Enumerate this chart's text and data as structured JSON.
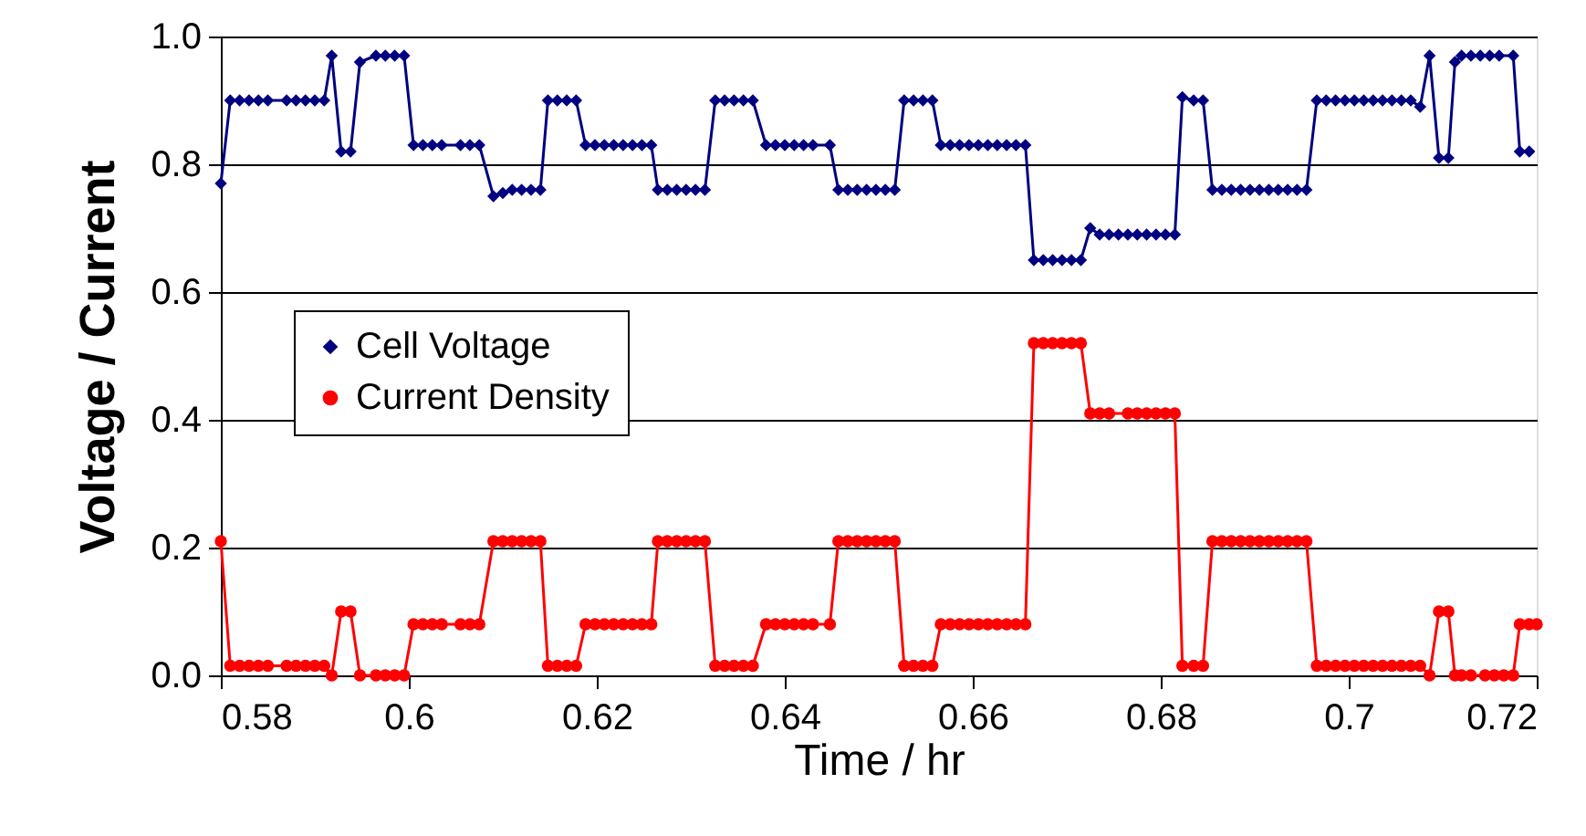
{
  "chart_data": {
    "type": "line",
    "xlabel": "Time / hr",
    "ylabel": "Voltage / Current",
    "xlim": [
      0.58,
      0.72
    ],
    "ylim": [
      0,
      1
    ],
    "xticks": [
      0.58,
      0.6,
      0.62,
      0.64,
      0.66,
      0.68,
      0.7,
      0.72
    ],
    "yticks": [
      {
        "value": 0,
        "label": "0.0"
      },
      0.2,
      0.4,
      0.6,
      0.8,
      {
        "value": 1,
        "label": "1.0"
      }
    ],
    "grid": "y",
    "legend": "left",
    "line_style": "solid",
    "series": [
      {
        "name": "Cell Voltage",
        "color": "#000080",
        "marker": "diamond",
        "x": [
          0.58,
          0.581,
          0.582,
          0.583,
          0.584,
          0.585,
          0.587,
          0.588,
          0.589,
          0.59,
          0.591,
          0.5918,
          0.5928,
          0.5938,
          0.5948,
          0.5965,
          0.5975,
          0.5985,
          0.5995,
          0.6005,
          0.6015,
          0.6025,
          0.6035,
          0.6055,
          0.6065,
          0.6075,
          0.609,
          0.61,
          0.611,
          0.612,
          0.613,
          0.614,
          0.6148,
          0.6158,
          0.6168,
          0.6178,
          0.6188,
          0.6198,
          0.6208,
          0.6218,
          0.6228,
          0.6238,
          0.6248,
          0.6258,
          0.6265,
          0.6275,
          0.6285,
          0.6295,
          0.6305,
          0.6315,
          0.6326,
          0.6336,
          0.6346,
          0.6356,
          0.6366,
          0.638,
          0.639,
          0.64,
          0.641,
          0.642,
          0.643,
          0.6448,
          0.6457,
          0.6467,
          0.6477,
          0.6487,
          0.6497,
          0.6507,
          0.6517,
          0.6527,
          0.6537,
          0.6547,
          0.6557,
          0.6566,
          0.6576,
          0.6586,
          0.6596,
          0.6606,
          0.6616,
          0.6626,
          0.6636,
          0.6646,
          0.6656,
          0.6665,
          0.6675,
          0.6685,
          0.6695,
          0.6705,
          0.6715,
          0.6725,
          0.6735,
          0.6745,
          0.6755,
          0.6765,
          0.6775,
          0.6785,
          0.6795,
          0.6805,
          0.6815,
          0.6823,
          0.6835,
          0.6845,
          0.6855,
          0.6865,
          0.6875,
          0.6885,
          0.6895,
          0.6905,
          0.6915,
          0.6925,
          0.6935,
          0.6945,
          0.6955,
          0.6966,
          0.6976,
          0.6986,
          0.6996,
          0.7006,
          0.7016,
          0.7026,
          0.7036,
          0.7046,
          0.7056,
          0.7066,
          0.7076,
          0.7086,
          0.7096,
          0.7106,
          0.7113,
          0.712,
          0.713,
          0.714,
          0.715,
          0.716,
          0.7175,
          0.7182,
          0.7192
        ],
        "values": [
          0.77,
          0.9,
          0.9,
          0.9,
          0.9,
          0.9,
          0.9,
          0.9,
          0.9,
          0.9,
          0.9,
          0.97,
          0.82,
          0.82,
          0.96,
          0.97,
          0.97,
          0.97,
          0.97,
          0.83,
          0.83,
          0.83,
          0.83,
          0.83,
          0.83,
          0.83,
          0.75,
          0.755,
          0.76,
          0.76,
          0.76,
          0.76,
          0.9,
          0.9,
          0.9,
          0.9,
          0.83,
          0.83,
          0.83,
          0.83,
          0.83,
          0.83,
          0.83,
          0.83,
          0.76,
          0.76,
          0.76,
          0.76,
          0.76,
          0.76,
          0.9,
          0.9,
          0.9,
          0.9,
          0.9,
          0.83,
          0.83,
          0.83,
          0.83,
          0.83,
          0.83,
          0.83,
          0.76,
          0.76,
          0.76,
          0.76,
          0.76,
          0.76,
          0.76,
          0.9,
          0.9,
          0.9,
          0.9,
          0.83,
          0.83,
          0.83,
          0.83,
          0.83,
          0.83,
          0.83,
          0.83,
          0.83,
          0.83,
          0.65,
          0.65,
          0.65,
          0.65,
          0.65,
          0.65,
          0.7,
          0.69,
          0.69,
          0.69,
          0.69,
          0.69,
          0.69,
          0.69,
          0.69,
          0.69,
          0.905,
          0.9,
          0.9,
          0.76,
          0.76,
          0.76,
          0.76,
          0.76,
          0.76,
          0.76,
          0.76,
          0.76,
          0.76,
          0.76,
          0.9,
          0.9,
          0.9,
          0.9,
          0.9,
          0.9,
          0.9,
          0.9,
          0.9,
          0.9,
          0.9,
          0.89,
          0.97,
          0.81,
          0.81,
          0.96,
          0.97,
          0.97,
          0.97,
          0.97,
          0.97,
          0.97,
          0.82,
          0.82
        ]
      },
      {
        "name": "Current Density",
        "color": "#ff0000",
        "marker": "circle",
        "x": [
          0.58,
          0.581,
          0.582,
          0.583,
          0.584,
          0.585,
          0.587,
          0.588,
          0.589,
          0.59,
          0.591,
          0.5918,
          0.5928,
          0.5938,
          0.5948,
          0.5965,
          0.5975,
          0.5985,
          0.5995,
          0.6005,
          0.6015,
          0.6025,
          0.6035,
          0.6055,
          0.6065,
          0.6075,
          0.609,
          0.61,
          0.611,
          0.612,
          0.613,
          0.614,
          0.6148,
          0.6158,
          0.6168,
          0.6178,
          0.6188,
          0.6198,
          0.6208,
          0.6218,
          0.6228,
          0.6238,
          0.6248,
          0.6258,
          0.6265,
          0.6275,
          0.6285,
          0.6295,
          0.6305,
          0.6315,
          0.6326,
          0.6336,
          0.6346,
          0.6356,
          0.6366,
          0.638,
          0.639,
          0.64,
          0.641,
          0.642,
          0.643,
          0.6448,
          0.6457,
          0.6467,
          0.6477,
          0.6487,
          0.6497,
          0.6507,
          0.6517,
          0.6527,
          0.6537,
          0.6547,
          0.6557,
          0.6566,
          0.6576,
          0.6586,
          0.6596,
          0.6606,
          0.6616,
          0.6626,
          0.6636,
          0.6646,
          0.6656,
          0.6665,
          0.6675,
          0.6685,
          0.6695,
          0.6705,
          0.6715,
          0.6725,
          0.6735,
          0.6745,
          0.6765,
          0.6775,
          0.6785,
          0.6795,
          0.6805,
          0.6815,
          0.6823,
          0.6835,
          0.6845,
          0.6855,
          0.6865,
          0.6875,
          0.6885,
          0.6895,
          0.6905,
          0.6915,
          0.6925,
          0.6935,
          0.6945,
          0.6955,
          0.6966,
          0.6976,
          0.6986,
          0.6996,
          0.7006,
          0.7016,
          0.7026,
          0.7036,
          0.7046,
          0.7056,
          0.7066,
          0.7076,
          0.7086,
          0.7096,
          0.7106,
          0.7113,
          0.712,
          0.713,
          0.7145,
          0.7155,
          0.7165,
          0.7175,
          0.7182,
          0.7192,
          0.72
        ],
        "values": [
          0.21,
          0.015,
          0.015,
          0.015,
          0.015,
          0.015,
          0.015,
          0.015,
          0.015,
          0.015,
          0.015,
          0.0,
          0.1,
          0.1,
          0.0,
          0.0,
          0.0,
          0.0,
          0.0,
          0.08,
          0.08,
          0.08,
          0.08,
          0.08,
          0.08,
          0.08,
          0.21,
          0.21,
          0.21,
          0.21,
          0.21,
          0.21,
          0.015,
          0.015,
          0.015,
          0.015,
          0.08,
          0.08,
          0.08,
          0.08,
          0.08,
          0.08,
          0.08,
          0.08,
          0.21,
          0.21,
          0.21,
          0.21,
          0.21,
          0.21,
          0.015,
          0.015,
          0.015,
          0.015,
          0.015,
          0.08,
          0.08,
          0.08,
          0.08,
          0.08,
          0.08,
          0.08,
          0.21,
          0.21,
          0.21,
          0.21,
          0.21,
          0.21,
          0.21,
          0.015,
          0.015,
          0.015,
          0.015,
          0.08,
          0.08,
          0.08,
          0.08,
          0.08,
          0.08,
          0.08,
          0.08,
          0.08,
          0.08,
          0.52,
          0.52,
          0.52,
          0.52,
          0.52,
          0.52,
          0.41,
          0.41,
          0.41,
          0.41,
          0.41,
          0.41,
          0.41,
          0.41,
          0.41,
          0.015,
          0.015,
          0.015,
          0.21,
          0.21,
          0.21,
          0.21,
          0.21,
          0.21,
          0.21,
          0.21,
          0.21,
          0.21,
          0.21,
          0.015,
          0.015,
          0.015,
          0.015,
          0.015,
          0.015,
          0.015,
          0.015,
          0.015,
          0.015,
          0.015,
          0.015,
          0.0,
          0.1,
          0.1,
          0.0,
          0.0,
          0.0,
          0.0,
          0.0,
          0.0,
          0.0,
          0.08,
          0.08,
          0.08
        ]
      }
    ]
  }
}
